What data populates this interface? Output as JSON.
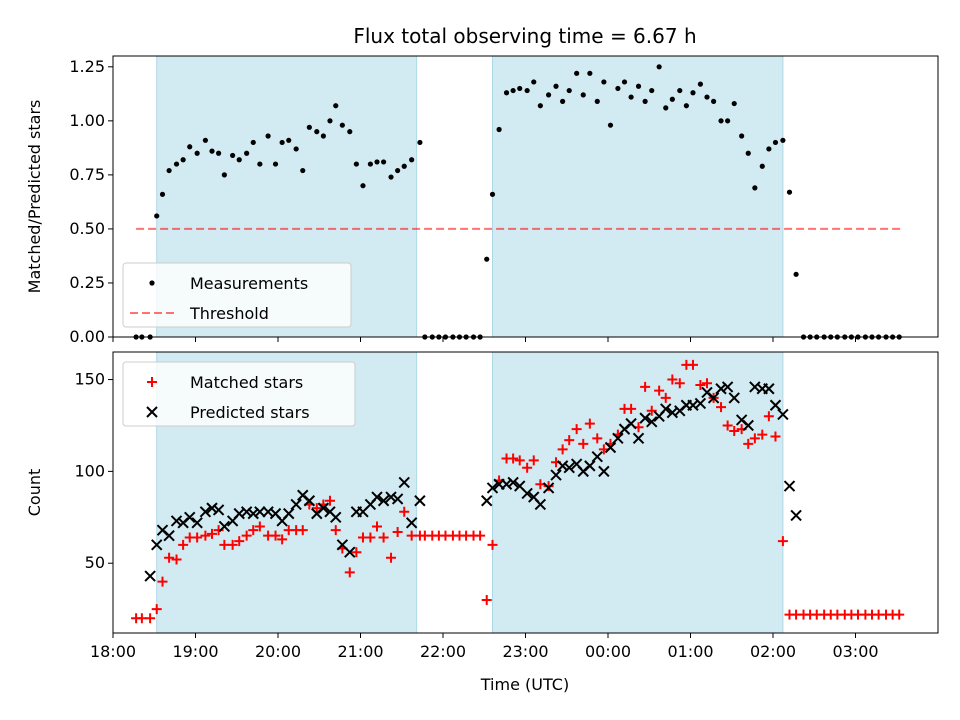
{
  "title": "Flux total observing time = 6.67 h",
  "xlabel": "Time (UTC)",
  "x_ticks": [
    "18:00",
    "19:00",
    "20:00",
    "21:00",
    "22:00",
    "23:00",
    "00:00",
    "01:00",
    "02:00",
    "03:00"
  ],
  "colors": {
    "band": "#add8e6",
    "measurement": "#000000",
    "threshold": "#ff0000",
    "matched": "#ff0000",
    "predicted": "#000000"
  },
  "chart_data": [
    {
      "type": "scatter",
      "ylabel": "Matched/Predicted stars",
      "ylim": [
        0,
        1.3
      ],
      "y_ticks": [
        "0.00",
        "0.25",
        "0.50",
        "0.75",
        "1.00",
        "1.25"
      ],
      "xlim": [
        18.0,
        28.0
      ],
      "legend": {
        "placement": "lower-left",
        "entries": [
          "Measurements",
          "Threshold"
        ]
      },
      "observing_intervals": [
        [
          18.53,
          21.68
        ],
        [
          22.6,
          26.12
        ]
      ],
      "threshold": {
        "value": 0.5,
        "x_range": [
          18.28,
          27.55
        ]
      },
      "series": [
        {
          "name": "Measurements",
          "x": [
            18.28,
            18.35,
            18.45,
            18.53,
            18.6,
            18.68,
            18.77,
            18.85,
            18.93,
            19.02,
            19.12,
            19.2,
            19.28,
            19.35,
            19.45,
            19.53,
            19.62,
            19.7,
            19.78,
            19.88,
            19.97,
            20.05,
            20.13,
            20.22,
            20.3,
            20.38,
            20.47,
            20.55,
            20.63,
            20.7,
            20.78,
            20.87,
            20.95,
            21.03,
            21.12,
            21.2,
            21.28,
            21.37,
            21.45,
            21.53,
            21.62,
            21.72,
            21.78,
            21.87,
            21.95,
            22.03,
            22.12,
            22.2,
            22.28,
            22.37,
            22.45,
            22.53,
            22.6,
            22.68,
            22.77,
            22.85,
            22.93,
            23.02,
            23.1,
            23.18,
            23.28,
            23.37,
            23.45,
            23.53,
            23.62,
            23.7,
            23.78,
            23.87,
            23.95,
            24.03,
            24.12,
            24.2,
            24.28,
            24.37,
            24.45,
            24.53,
            24.62,
            24.7,
            24.78,
            24.87,
            24.95,
            25.03,
            25.12,
            25.2,
            25.28,
            25.37,
            25.45,
            25.53,
            25.62,
            25.7,
            25.78,
            25.87,
            25.95,
            26.03,
            26.12,
            26.2,
            26.28,
            26.37,
            26.45,
            26.53,
            26.62,
            26.7,
            26.78,
            26.87,
            26.95,
            27.03,
            27.12,
            27.2,
            27.28,
            27.37,
            27.45,
            27.53
          ],
          "y": [
            0,
            0,
            0,
            0.56,
            0.66,
            0.77,
            0.8,
            0.82,
            0.88,
            0.85,
            0.91,
            0.86,
            0.85,
            0.75,
            0.84,
            0.82,
            0.85,
            0.9,
            0.8,
            0.93,
            0.8,
            0.9,
            0.91,
            0.87,
            0.77,
            0.97,
            0.95,
            0.93,
            1.0,
            1.07,
            0.98,
            0.95,
            0.8,
            0.7,
            0.8,
            0.81,
            0.81,
            0.74,
            0.77,
            0.79,
            0.82,
            0.9,
            0,
            0,
            0,
            0,
            0,
            0,
            0,
            0,
            0,
            0.36,
            0.66,
            0.96,
            1.13,
            1.14,
            1.15,
            1.14,
            1.18,
            1.07,
            1.12,
            1.16,
            1.09,
            1.14,
            1.22,
            1.12,
            1.22,
            1.09,
            1.18,
            0.98,
            1.15,
            1.18,
            1.11,
            1.16,
            1.09,
            1.14,
            1.25,
            1.06,
            1.1,
            1.14,
            1.07,
            1.13,
            1.17,
            1.11,
            1.09,
            1.0,
            1.0,
            1.08,
            0.93,
            0.85,
            0.69,
            0.79,
            0.87,
            0.9,
            0.91,
            0.67,
            0.29,
            0,
            0,
            0,
            0,
            0,
            0,
            0,
            0,
            0,
            0,
            0,
            0,
            0,
            0,
            0
          ]
        }
      ]
    },
    {
      "type": "scatter",
      "ylabel": "Count",
      "ylim": [
        12,
        165
      ],
      "y_ticks": [
        "50",
        "100",
        "150"
      ],
      "xlim": [
        18.0,
        28.0
      ],
      "legend": {
        "placement": "upper-left",
        "entries": [
          "Matched stars",
          "Predicted stars"
        ]
      },
      "observing_intervals": [
        [
          18.53,
          21.68
        ],
        [
          22.6,
          26.12
        ]
      ],
      "series": [
        {
          "name": "Matched stars",
          "x": [
            18.28,
            18.35,
            18.45,
            18.53,
            18.6,
            18.68,
            18.77,
            18.85,
            18.93,
            19.02,
            19.12,
            19.2,
            19.28,
            19.35,
            19.45,
            19.53,
            19.62,
            19.7,
            19.78,
            19.88,
            19.97,
            20.05,
            20.13,
            20.22,
            20.3,
            20.38,
            20.47,
            20.55,
            20.63,
            20.7,
            20.78,
            20.87,
            20.95,
            21.03,
            21.12,
            21.2,
            21.28,
            21.37,
            21.45,
            21.53,
            21.62,
            21.72,
            21.78,
            21.87,
            21.95,
            22.03,
            22.12,
            22.2,
            22.28,
            22.37,
            22.45,
            22.53,
            22.6,
            22.68,
            22.77,
            22.85,
            22.93,
            23.02,
            23.1,
            23.18,
            23.28,
            23.37,
            23.45,
            23.53,
            23.62,
            23.7,
            23.78,
            23.87,
            23.95,
            24.03,
            24.12,
            24.2,
            24.28,
            24.37,
            24.45,
            24.53,
            24.62,
            24.7,
            24.78,
            24.87,
            24.95,
            25.03,
            25.12,
            25.2,
            25.28,
            25.37,
            25.45,
            25.53,
            25.62,
            25.7,
            25.78,
            25.87,
            25.95,
            26.03,
            26.12,
            26.2,
            26.28,
            26.37,
            26.45,
            26.53,
            26.62,
            26.7,
            26.78,
            26.87,
            26.95,
            27.03,
            27.12,
            27.2,
            27.28,
            27.37,
            27.45,
            27.53
          ],
          "y": [
            20,
            20,
            20,
            25,
            40,
            53,
            52,
            60,
            64,
            64,
            65,
            66,
            68,
            60,
            60,
            62,
            65,
            68,
            70,
            65,
            65,
            63,
            68,
            68,
            68,
            82,
            80,
            82,
            84,
            68,
            58,
            45,
            56,
            64,
            64,
            70,
            64,
            53,
            67,
            78,
            65,
            65,
            65,
            65,
            65,
            65,
            65,
            65,
            65,
            65,
            65,
            30,
            60,
            95,
            107,
            107,
            106,
            102,
            106,
            93,
            92,
            105,
            112,
            117,
            123,
            115,
            126,
            118,
            112,
            115,
            120,
            134,
            134,
            124,
            146,
            133,
            144,
            140,
            150,
            148,
            158,
            158,
            147,
            148,
            140,
            135,
            125,
            122,
            123,
            115,
            118,
            120,
            130,
            119,
            62,
            22,
            22,
            22,
            22,
            22,
            22,
            22,
            22,
            22,
            22,
            22,
            22,
            22,
            22,
            22,
            22,
            22
          ]
        },
        {
          "name": "Predicted stars",
          "x": [
            18.45,
            18.53,
            18.6,
            18.68,
            18.77,
            18.85,
            18.93,
            19.02,
            19.12,
            19.2,
            19.28,
            19.35,
            19.45,
            19.53,
            19.62,
            19.7,
            19.78,
            19.88,
            19.97,
            20.05,
            20.13,
            20.22,
            20.3,
            20.38,
            20.47,
            20.55,
            20.63,
            20.7,
            20.78,
            20.87,
            20.95,
            21.03,
            21.12,
            21.2,
            21.28,
            21.37,
            21.45,
            21.53,
            21.62,
            21.72,
            22.53,
            22.6,
            22.68,
            22.77,
            22.85,
            22.93,
            23.02,
            23.1,
            23.18,
            23.28,
            23.37,
            23.45,
            23.53,
            23.62,
            23.7,
            23.78,
            23.87,
            23.95,
            24.03,
            24.12,
            24.2,
            24.28,
            24.37,
            24.45,
            24.53,
            24.62,
            24.7,
            24.78,
            24.87,
            24.95,
            25.03,
            25.12,
            25.2,
            25.28,
            25.37,
            25.45,
            25.53,
            25.62,
            25.7,
            25.78,
            25.87,
            25.95,
            26.03,
            26.12,
            26.2,
            26.28
          ],
          "y": [
            43,
            60,
            68,
            65,
            73,
            72,
            75,
            72,
            78,
            80,
            79,
            70,
            73,
            77,
            78,
            77,
            78,
            78,
            77,
            73,
            77,
            82,
            87,
            84,
            77,
            80,
            78,
            75,
            60,
            56,
            78,
            78,
            82,
            86,
            84,
            86,
            85,
            94,
            72,
            84,
            84,
            91,
            93,
            93,
            94,
            92,
            88,
            86,
            82,
            91,
            98,
            103,
            102,
            104,
            100,
            103,
            108,
            100,
            113,
            118,
            123,
            126,
            118,
            129,
            127,
            130,
            134,
            132,
            133,
            136,
            136,
            137,
            143,
            140,
            145,
            146,
            140,
            128,
            125,
            146,
            145,
            145,
            136,
            131,
            92,
            76
          ]
        }
      ]
    }
  ]
}
